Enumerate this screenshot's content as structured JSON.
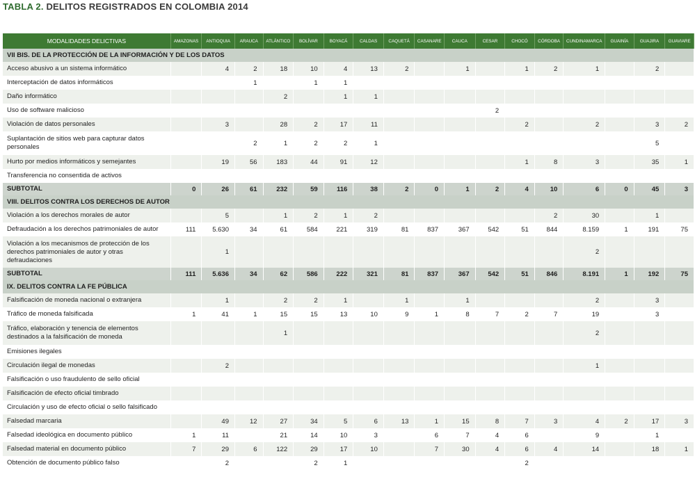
{
  "title": {
    "prefix": "TABLA 2.",
    "text": "DELITOS REGISTRADOS EN COLOMBIA 2014"
  },
  "columns": [
    "MODALIDADES DELICTIVAS",
    "AMAZONAS",
    "ANTIOQUIA",
    "ARAUCA",
    "ATLÁNTICO",
    "BOLÍVAR",
    "BOYACÁ",
    "CALDAS",
    "CAQUETÁ",
    "CASANARE",
    "CAUCA",
    "CESAR",
    "CHOCÓ",
    "CÓRDOBA",
    "CUNDINAMARCA",
    "GUAINÍA",
    "GUAJIRA",
    "GUAVIARE"
  ],
  "rows": [
    {
      "type": "section",
      "label": "VII BIS. DE LA PROTECCIÓN DE LA INFORMACIÓN Y DE LOS DATOS"
    },
    {
      "type": "data",
      "label": "Acceso abusivo a un sistema informático",
      "values": [
        "",
        "4",
        "2",
        "18",
        "10",
        "4",
        "13",
        "2",
        "",
        "1",
        "",
        "1",
        "2",
        "1",
        "",
        "2",
        ""
      ]
    },
    {
      "type": "data",
      "label": "Interceptación de datos informáticos",
      "values": [
        "",
        "",
        "1",
        "",
        "1",
        "1",
        "",
        "",
        "",
        "",
        "",
        "",
        "",
        "",
        "",
        "",
        ""
      ]
    },
    {
      "type": "data",
      "label": "Daño informático",
      "values": [
        "",
        "",
        "",
        "2",
        "",
        "1",
        "1",
        "",
        "",
        "",
        "",
        "",
        "",
        "",
        "",
        "",
        ""
      ]
    },
    {
      "type": "data",
      "label": "Uso de software malicioso",
      "values": [
        "",
        "",
        "",
        "",
        "",
        "",
        "",
        "",
        "",
        "",
        "2",
        "",
        "",
        "",
        "",
        "",
        ""
      ]
    },
    {
      "type": "data",
      "label": "Violación de datos personales",
      "values": [
        "",
        "3",
        "",
        "28",
        "2",
        "17",
        "11",
        "",
        "",
        "",
        "",
        "2",
        "",
        "2",
        "",
        "3",
        "2"
      ]
    },
    {
      "type": "data",
      "tall": true,
      "label": "Suplantación de sitios web para capturar datos personales",
      "values": [
        "",
        "",
        "2",
        "1",
        "2",
        "2",
        "1",
        "",
        "",
        "",
        "",
        "",
        "",
        "",
        "",
        "5",
        ""
      ]
    },
    {
      "type": "data",
      "label": "Hurto por medios informáticos y semejantes",
      "values": [
        "",
        "19",
        "56",
        "183",
        "44",
        "91",
        "12",
        "",
        "",
        "",
        "",
        "1",
        "8",
        "3",
        "",
        "35",
        "1"
      ]
    },
    {
      "type": "data",
      "label": "Transferencia no consentida de activos",
      "values": [
        "",
        "",
        "",
        "",
        "",
        "",
        "",
        "",
        "",
        "",
        "",
        "",
        "",
        "",
        "",
        "",
        ""
      ]
    },
    {
      "type": "subtotal",
      "label": "SUBTOTAL",
      "values": [
        "0",
        "26",
        "61",
        "232",
        "59",
        "116",
        "38",
        "2",
        "0",
        "1",
        "2",
        "4",
        "10",
        "6",
        "0",
        "45",
        "3"
      ]
    },
    {
      "type": "section",
      "label": "VIII. DELITOS CONTRA LOS DERECHOS DE AUTOR"
    },
    {
      "type": "data",
      "label": "Violación a los derechos morales de autor",
      "values": [
        "",
        "5",
        "",
        "1",
        "2",
        "1",
        "2",
        "",
        "",
        "",
        "",
        "",
        "2",
        "30",
        "",
        "1",
        ""
      ]
    },
    {
      "type": "data",
      "label": "Defraudación a los derechos patrimoniales de autor",
      "values": [
        "111",
        "5.630",
        "34",
        "61",
        "584",
        "221",
        "319",
        "81",
        "837",
        "367",
        "542",
        "51",
        "844",
        "8.159",
        "1",
        "191",
        "75"
      ]
    },
    {
      "type": "data",
      "tall3": true,
      "label": "Violación a los mecanismos de protección de los derechos patrimoniales de autor y otras defraudaciones",
      "values": [
        "",
        "1",
        "",
        "",
        "",
        "",
        "",
        "",
        "",
        "",
        "",
        "",
        "",
        "2",
        "",
        "",
        ""
      ]
    },
    {
      "type": "subtotal",
      "label": "SUBTOTAL",
      "values": [
        "111",
        "5.636",
        "34",
        "62",
        "586",
        "222",
        "321",
        "81",
        "837",
        "367",
        "542",
        "51",
        "846",
        "8.191",
        "1",
        "192",
        "75"
      ]
    },
    {
      "type": "section",
      "label": "IX. DELITOS CONTRA LA FE PÚBLICA"
    },
    {
      "type": "data",
      "label": "Falsificación de moneda nacional o extranjera",
      "values": [
        "",
        "1",
        "",
        "2",
        "2",
        "1",
        "",
        "1",
        "",
        "1",
        "",
        "",
        "",
        "2",
        "",
        "3",
        ""
      ]
    },
    {
      "type": "data",
      "label": "Tráfico de moneda falsificada",
      "values": [
        "1",
        "41",
        "1",
        "15",
        "15",
        "13",
        "10",
        "9",
        "1",
        "8",
        "7",
        "2",
        "7",
        "19",
        "",
        "3",
        ""
      ]
    },
    {
      "type": "data",
      "tall": true,
      "label": "Tráfico, elaboración y tenencia de elementos destinados a la falsificación de moneda",
      "values": [
        "",
        "",
        "",
        "1",
        "",
        "",
        "",
        "",
        "",
        "",
        "",
        "",
        "",
        "2",
        "",
        "",
        ""
      ]
    },
    {
      "type": "data",
      "label": "Emisiones ilegales",
      "values": [
        "",
        "",
        "",
        "",
        "",
        "",
        "",
        "",
        "",
        "",
        "",
        "",
        "",
        "",
        "",
        "",
        ""
      ]
    },
    {
      "type": "data",
      "label": "Circulación ilegal de monedas",
      "values": [
        "",
        "2",
        "",
        "",
        "",
        "",
        "",
        "",
        "",
        "",
        "",
        "",
        "",
        "1",
        "",
        "",
        ""
      ]
    },
    {
      "type": "data",
      "label": "Falsificación o uso fraudulento de sello oficial",
      "values": [
        "",
        "",
        "",
        "",
        "",
        "",
        "",
        "",
        "",
        "",
        "",
        "",
        "",
        "",
        "",
        "",
        ""
      ]
    },
    {
      "type": "data",
      "label": "Falsificación de efecto oficial timbrado",
      "values": [
        "",
        "",
        "",
        "",
        "",
        "",
        "",
        "",
        "",
        "",
        "",
        "",
        "",
        "",
        "",
        "",
        ""
      ]
    },
    {
      "type": "data",
      "label": "Circulación y uso de efecto oficial o sello falsificado",
      "values": [
        "",
        "",
        "",
        "",
        "",
        "",
        "",
        "",
        "",
        "",
        "",
        "",
        "",
        "",
        "",
        "",
        ""
      ]
    },
    {
      "type": "data",
      "label": "Falsedad marcaria",
      "values": [
        "",
        "49",
        "12",
        "27",
        "34",
        "5",
        "6",
        "13",
        "1",
        "15",
        "8",
        "7",
        "3",
        "4",
        "2",
        "17",
        "3"
      ]
    },
    {
      "type": "data",
      "label": "Falsedad ideológica en documento público",
      "values": [
        "1",
        "11",
        "",
        "21",
        "14",
        "10",
        "3",
        "",
        "6",
        "7",
        "4",
        "6",
        "",
        "9",
        "",
        "1",
        ""
      ]
    },
    {
      "type": "data",
      "label": "Falsedad material en documento público",
      "values": [
        "7",
        "29",
        "6",
        "122",
        "29",
        "17",
        "10",
        "",
        "7",
        "30",
        "4",
        "6",
        "4",
        "14",
        "",
        "18",
        "1"
      ]
    },
    {
      "type": "data",
      "label": "Obtención de documento público falso",
      "values": [
        "",
        "2",
        "",
        "",
        "2",
        "1",
        "",
        "",
        "",
        "",
        "",
        "2",
        "",
        "",
        "",
        "",
        ""
      ]
    }
  ]
}
